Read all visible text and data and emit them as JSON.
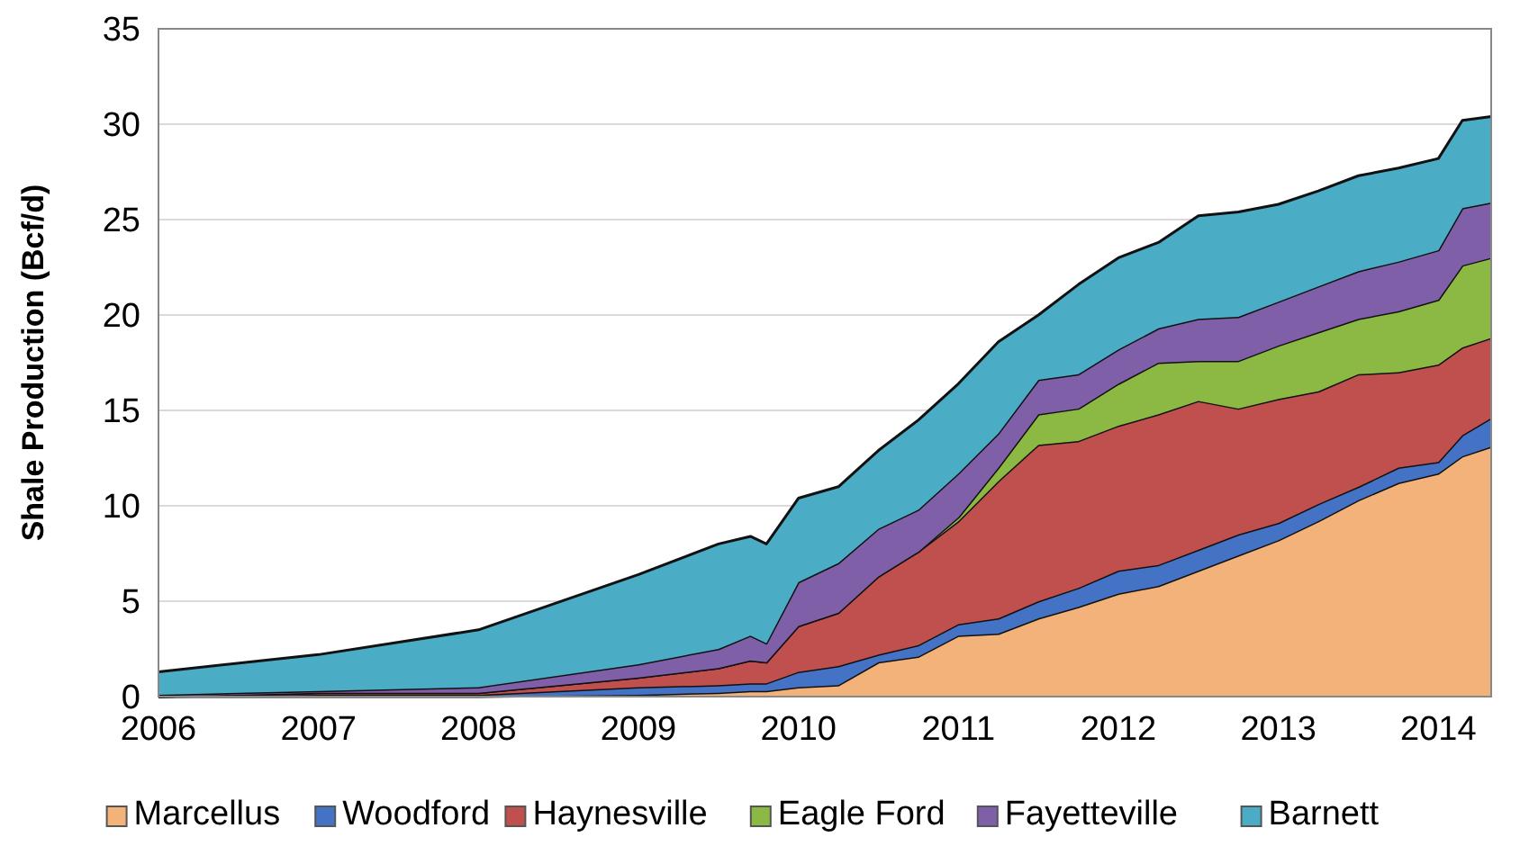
{
  "chart_data": {
    "type": "area",
    "stacked": true,
    "ylabel": "Shale Production (Bcf/d)",
    "x": [
      2006,
      2007,
      2008,
      2009,
      2009.5,
      2009.7,
      2009.8,
      2010,
      2010.25,
      2010.5,
      2010.75,
      2011,
      2011.25,
      2011.5,
      2011.75,
      2012,
      2012.25,
      2012.5,
      2012.75,
      2013,
      2013.25,
      2013.5,
      2013.75,
      2014,
      2014.15,
      2014.33
    ],
    "series": [
      {
        "name": "Marcellus",
        "color": "#f2b27a",
        "values": [
          0,
          0,
          0,
          0.1,
          0.2,
          0.3,
          0.3,
          0.5,
          0.6,
          1.8,
          2.1,
          3.2,
          3.3,
          4.1,
          4.7,
          5.4,
          5.8,
          6.6,
          7.4,
          8.2,
          9.2,
          10.3,
          11.2,
          11.7,
          12.6,
          13.1
        ]
      },
      {
        "name": "Woodford",
        "color": "#4472c4",
        "values": [
          0,
          0.1,
          0.1,
          0.4,
          0.4,
          0.4,
          0.4,
          0.8,
          1.0,
          0.4,
          0.6,
          0.6,
          0.8,
          0.9,
          1.0,
          1.2,
          1.1,
          1.1,
          1.1,
          0.9,
          0.9,
          0.7,
          0.8,
          0.6,
          1.1,
          1.5
        ]
      },
      {
        "name": "Haynesville",
        "color": "#c0504d",
        "values": [
          0,
          0.1,
          0.1,
          0.5,
          0.9,
          1.2,
          1.1,
          2.4,
          2.8,
          4.1,
          4.9,
          5.4,
          7.2,
          8.2,
          7.7,
          7.6,
          7.9,
          7.8,
          6.6,
          6.5,
          5.9,
          5.9,
          5.0,
          5.1,
          4.6,
          4.2
        ]
      },
      {
        "name": "Eagle Ford",
        "color": "#8cb944",
        "values": [
          0,
          0,
          0,
          0,
          0,
          0,
          0,
          0,
          0,
          0,
          0,
          0.2,
          0.7,
          1.6,
          1.7,
          2.2,
          2.7,
          2.1,
          2.5,
          2.8,
          3.1,
          2.9,
          3.2,
          3.4,
          4.3,
          4.2
        ]
      },
      {
        "name": "Fayetteville",
        "color": "#7f5fa8",
        "values": [
          0.1,
          0.1,
          0.3,
          0.7,
          1.0,
          1.3,
          1.0,
          2.3,
          2.6,
          2.5,
          2.2,
          2.3,
          1.8,
          1.8,
          1.8,
          1.8,
          1.8,
          2.2,
          2.3,
          2.3,
          2.4,
          2.5,
          2.6,
          2.6,
          3.0,
          2.9
        ]
      },
      {
        "name": "Barnett",
        "color": "#4bacc6",
        "values": [
          1.2,
          1.9,
          3.0,
          4.7,
          5.5,
          5.2,
          5.2,
          4.4,
          4.0,
          4.1,
          4.7,
          4.7,
          4.8,
          3.4,
          4.7,
          4.8,
          4.5,
          5.4,
          5.5,
          5.1,
          5.0,
          5.0,
          4.9,
          4.8,
          4.6,
          4.5
        ]
      }
    ],
    "xlim": [
      2006,
      2014.33
    ],
    "xticks": [
      2006,
      2007,
      2008,
      2009,
      2010,
      2011,
      2012,
      2013,
      2014
    ],
    "ylim": [
      0,
      35
    ],
    "yticks": [
      0,
      5,
      10,
      15,
      20,
      25,
      30,
      35
    ],
    "grid": "y",
    "legend": "bottom"
  }
}
